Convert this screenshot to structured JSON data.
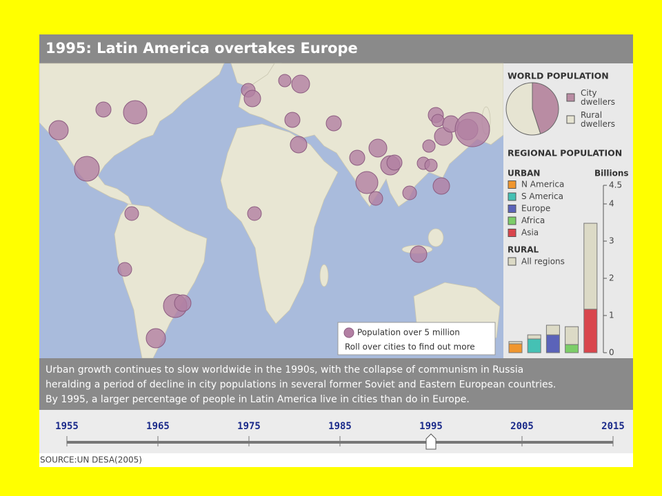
{
  "header": {
    "title": "1995: Latin America overtakes Europe"
  },
  "map": {
    "legend_label": "Population over 5 million",
    "hint": "Roll over cities to find out more"
  },
  "chart_data": [
    {
      "type": "pie",
      "title": "WORLD POPULATION",
      "categories": [
        "City dwellers",
        "Rural dwellers"
      ],
      "values": [
        45,
        55
      ],
      "colors": [
        "#b98ca3",
        "#e6e4d2"
      ]
    },
    {
      "type": "bar",
      "stacked": true,
      "title": "REGIONAL POPULATION",
      "y_label": "Billions",
      "categories": [
        "N America",
        "S America",
        "Europe",
        "Africa",
        "Asia"
      ],
      "colors": [
        "#f0962e",
        "#45c1b4",
        "#5b63b9",
        "#7ccd68",
        "#d9454c"
      ],
      "series": [
        {
          "name": "URBAN",
          "values": [
            0.24,
            0.37,
            0.48,
            0.22,
            1.17
          ]
        },
        {
          "name": "RURAL",
          "legend": "All regions",
          "color": "#dcdac6",
          "values": [
            0.06,
            0.11,
            0.26,
            0.48,
            2.31
          ]
        }
      ],
      "ylim": [
        0,
        4.5
      ],
      "yticks": [
        0,
        1,
        2,
        3,
        4,
        4.5
      ]
    }
  ],
  "description": [
    "Urban growth continues to slow worldwide in the 1990s, with the collapse of communism in Russia",
    "heralding a period of decline in city populations in several former Soviet and Eastern European countries.",
    "By 1995, a larger percentage of people in Latin America live in cities than do in Europe."
  ],
  "timeline": {
    "years": [
      "1955",
      "1965",
      "1975",
      "1985",
      "1995",
      "2005",
      "2015"
    ],
    "selected": "1995"
  },
  "source": "SOURCE:UN DESA(2005)"
}
